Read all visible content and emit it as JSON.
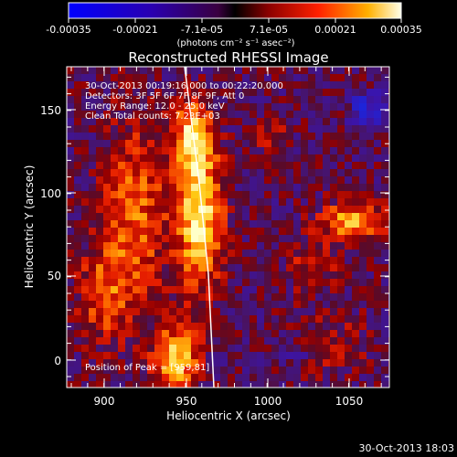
{
  "colorbar": {
    "tick_labels": [
      "-0.00035",
      "-0.00021",
      "-7.1e-05",
      "7.1e-05",
      "0.00021",
      "0.00035"
    ],
    "units_label": "(photons cm⁻² s⁻¹ asec⁻²)",
    "range": [
      -0.00035,
      0.00035
    ]
  },
  "plot": {
    "title": "Reconstructed RHESSI Image",
    "xlabel": "Heliocentric X (arcsec)",
    "ylabel": "Heliocentric Y (arcsec)",
    "x_ticks": [
      "900",
      "950",
      "1000",
      "1050"
    ],
    "y_ticks": [
      "0",
      "50",
      "100",
      "150"
    ],
    "xlim": [
      880,
      1070
    ],
    "ylim": [
      -15,
      172
    ]
  },
  "annotations": {
    "time_range": "30-Oct-2013 00:19:16.000 to 00:22:20.000",
    "detectors": "Detectors: 3F 5F 6F 7F 8F 9F, Att 0",
    "energy": "Energy Range: 12.0 - 25.0 keV",
    "method": "Clean     Total counts: 7.23E+03",
    "peak": "Position of Peak = [959,81]"
  },
  "footer": {
    "timestamp": "30-Oct-2013 18:03"
  }
}
